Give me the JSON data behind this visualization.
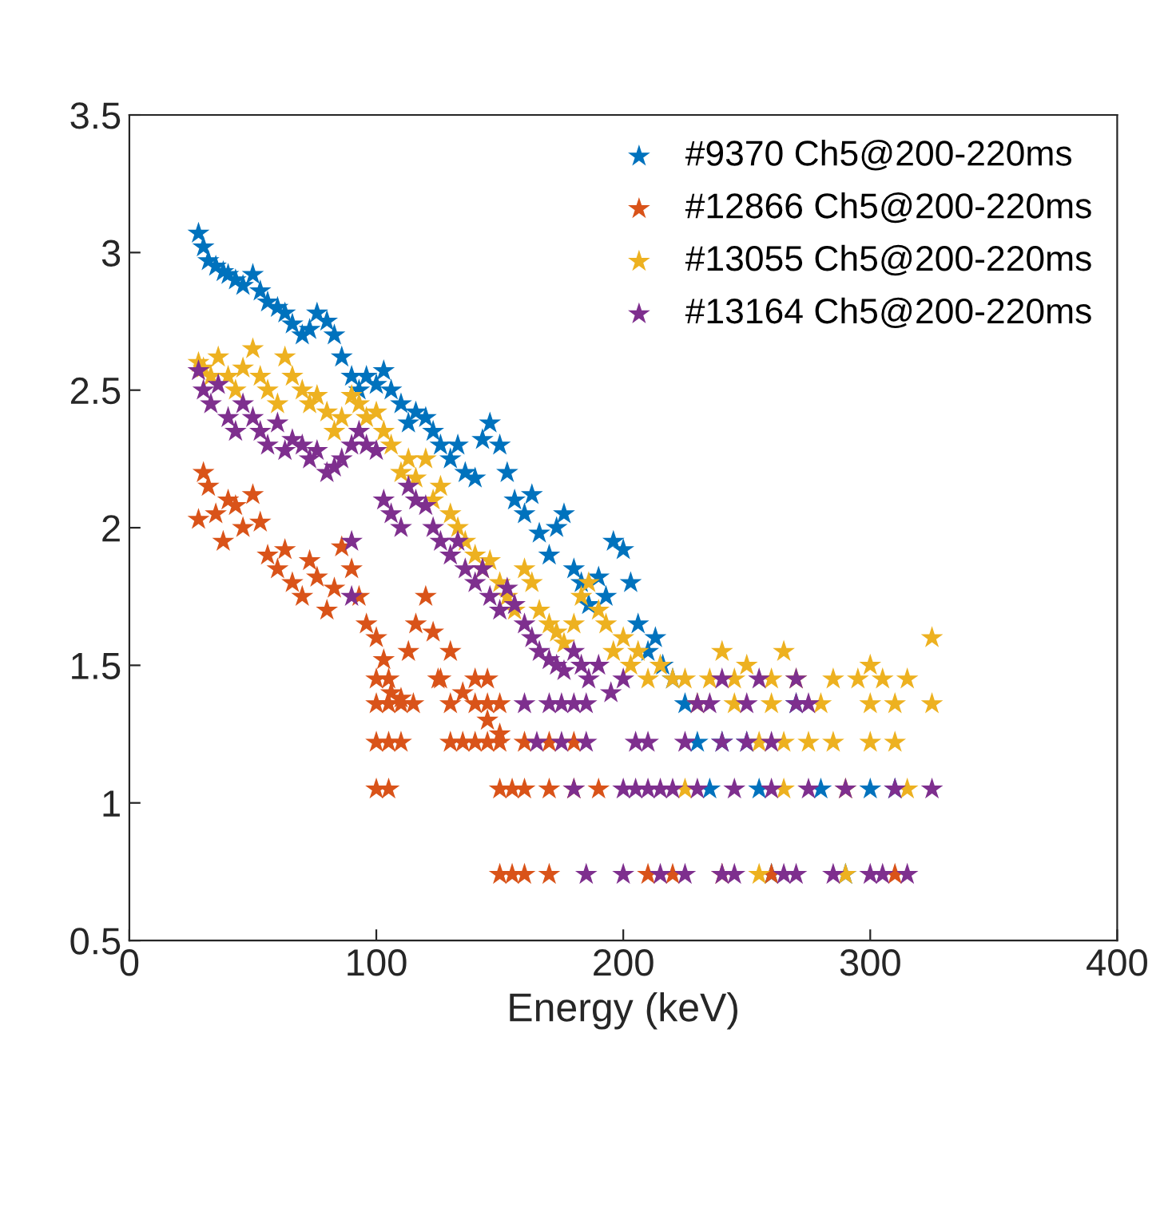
{
  "chart_data": {
    "type": "scatter",
    "xlabel": "Energy (keV)",
    "xlim": [
      0,
      400
    ],
    "xticks": [
      0,
      100,
      200,
      300,
      400
    ],
    "ylim": [
      0.5,
      3.5
    ],
    "yticks": [
      0.5,
      1,
      1.5,
      2,
      2.5,
      3,
      3.5
    ],
    "grid": false,
    "legend": "top right",
    "marker": "star",
    "series": [
      {
        "name": "#9370 Ch5@200-220ms",
        "color": "#0072bd",
        "x": [
          28,
          30,
          32,
          35,
          38,
          40,
          43,
          46,
          50,
          53,
          56,
          60,
          63,
          66,
          70,
          73,
          76,
          80,
          83,
          86,
          90,
          93,
          96,
          100,
          103,
          106,
          110,
          113,
          116,
          120,
          123,
          126,
          130,
          133,
          136,
          140,
          143,
          146,
          150,
          153,
          156,
          160,
          163,
          166,
          170,
          173,
          176,
          180,
          183,
          186,
          190,
          193,
          196,
          200,
          203,
          206,
          210,
          213,
          216,
          220,
          225,
          240,
          250,
          270,
          235,
          255,
          280,
          300,
          310,
          260,
          290,
          230
        ],
        "values": [
          3.07,
          3.02,
          2.97,
          2.95,
          2.93,
          2.92,
          2.9,
          2.88,
          2.92,
          2.86,
          2.82,
          2.8,
          2.78,
          2.74,
          2.7,
          2.72,
          2.78,
          2.75,
          2.7,
          2.62,
          2.55,
          2.5,
          2.55,
          2.52,
          2.57,
          2.5,
          2.45,
          2.38,
          2.42,
          2.4,
          2.35,
          2.3,
          2.25,
          2.3,
          2.2,
          2.18,
          2.32,
          2.38,
          2.3,
          2.2,
          2.1,
          2.05,
          2.12,
          1.98,
          1.9,
          2.0,
          2.05,
          1.85,
          1.8,
          1.72,
          1.82,
          1.75,
          1.95,
          1.92,
          1.8,
          1.65,
          1.55,
          1.6,
          1.5,
          1.45,
          1.36,
          1.22,
          1.22,
          1.36,
          1.05,
          1.05,
          1.05,
          1.05,
          1.05,
          0.74,
          0.74,
          1.22
        ]
      },
      {
        "name": "#12866 Ch5@200-220ms",
        "color": "#d95319",
        "x": [
          28,
          30,
          32,
          35,
          38,
          40,
          43,
          46,
          50,
          53,
          56,
          60,
          63,
          66,
          70,
          73,
          76,
          80,
          83,
          86,
          90,
          93,
          96,
          100,
          103,
          106,
          110,
          113,
          116,
          120,
          123,
          126,
          130,
          135,
          140,
          145,
          150,
          100,
          105,
          110,
          115,
          130,
          140,
          145,
          150,
          100,
          105,
          110,
          130,
          135,
          140,
          145,
          160,
          170,
          150,
          180,
          100,
          105,
          150,
          155,
          160,
          170,
          180,
          190,
          150,
          155,
          160,
          170,
          210,
          220,
          240,
          260,
          310,
          100,
          105,
          125,
          145
        ],
        "values": [
          2.03,
          2.2,
          2.15,
          2.05,
          1.95,
          2.1,
          2.08,
          2.0,
          2.12,
          2.02,
          1.9,
          1.85,
          1.92,
          1.8,
          1.75,
          1.88,
          1.82,
          1.7,
          1.78,
          1.93,
          1.85,
          1.75,
          1.65,
          1.6,
          1.52,
          1.4,
          1.38,
          1.55,
          1.65,
          1.75,
          1.62,
          1.45,
          1.55,
          1.4,
          1.45,
          1.3,
          1.25,
          1.36,
          1.36,
          1.36,
          1.36,
          1.36,
          1.36,
          1.36,
          1.36,
          1.22,
          1.22,
          1.22,
          1.22,
          1.22,
          1.22,
          1.22,
          1.22,
          1.22,
          1.22,
          1.22,
          1.05,
          1.05,
          1.05,
          1.05,
          1.05,
          1.05,
          1.05,
          1.05,
          0.74,
          0.74,
          0.74,
          0.74,
          0.74,
          0.74,
          0.74,
          0.74,
          0.74,
          1.45,
          1.45,
          1.45,
          1.45
        ]
      },
      {
        "name": "#13055 Ch5@200-220ms",
        "color": "#edb120",
        "x": [
          28,
          30,
          33,
          36,
          40,
          43,
          46,
          50,
          53,
          56,
          60,
          63,
          66,
          70,
          73,
          76,
          80,
          83,
          86,
          90,
          93,
          96,
          100,
          103,
          106,
          110,
          113,
          116,
          120,
          123,
          126,
          130,
          133,
          136,
          140,
          143,
          146,
          150,
          153,
          156,
          160,
          163,
          166,
          170,
          173,
          176,
          180,
          183,
          186,
          190,
          193,
          196,
          200,
          203,
          206,
          210,
          215,
          220,
          240,
          250,
          265,
          300,
          325,
          225,
          235,
          245,
          260,
          270,
          285,
          295,
          305,
          315,
          230,
          245,
          260,
          280,
          300,
          310,
          325,
          255,
          265,
          275,
          285,
          300,
          310,
          225,
          265,
          290,
          315,
          255,
          290
        ],
        "values": [
          2.6,
          2.58,
          2.55,
          2.62,
          2.55,
          2.5,
          2.58,
          2.65,
          2.55,
          2.5,
          2.45,
          2.62,
          2.55,
          2.5,
          2.45,
          2.48,
          2.42,
          2.35,
          2.4,
          2.48,
          2.45,
          2.4,
          2.42,
          2.35,
          2.3,
          2.2,
          2.25,
          2.18,
          2.25,
          2.1,
          2.15,
          2.05,
          2.0,
          1.95,
          1.9,
          1.85,
          1.88,
          1.8,
          1.75,
          1.7,
          1.85,
          1.8,
          1.7,
          1.65,
          1.62,
          1.58,
          1.65,
          1.75,
          1.8,
          1.7,
          1.65,
          1.55,
          1.6,
          1.5,
          1.55,
          1.45,
          1.5,
          1.45,
          1.55,
          1.5,
          1.55,
          1.5,
          1.6,
          1.45,
          1.45,
          1.45,
          1.45,
          1.45,
          1.45,
          1.45,
          1.45,
          1.45,
          1.36,
          1.36,
          1.36,
          1.36,
          1.36,
          1.36,
          1.36,
          1.22,
          1.22,
          1.22,
          1.22,
          1.22,
          1.22,
          1.05,
          1.05,
          1.05,
          1.05,
          0.74,
          0.74
        ]
      },
      {
        "name": "#13164 Ch5@200-220ms",
        "color": "#7e2f8e",
        "x": [
          28,
          30,
          33,
          36,
          40,
          43,
          46,
          50,
          53,
          56,
          60,
          63,
          66,
          70,
          73,
          76,
          80,
          83,
          86,
          90,
          93,
          96,
          100,
          103,
          106,
          110,
          113,
          116,
          120,
          123,
          126,
          130,
          133,
          136,
          140,
          143,
          146,
          150,
          153,
          156,
          160,
          163,
          166,
          170,
          173,
          176,
          180,
          183,
          186,
          190,
          195,
          200,
          90,
          90,
          240,
          255,
          270,
          160,
          170,
          175,
          180,
          185,
          230,
          235,
          250,
          270,
          275,
          165,
          175,
          185,
          205,
          210,
          225,
          240,
          250,
          260,
          180,
          200,
          205,
          210,
          215,
          220,
          230,
          245,
          260,
          275,
          290,
          310,
          325,
          185,
          200,
          215,
          225,
          240,
          245,
          265,
          270,
          285,
          300,
          305,
          315
        ],
        "values": [
          2.57,
          2.5,
          2.45,
          2.52,
          2.4,
          2.35,
          2.45,
          2.4,
          2.35,
          2.3,
          2.38,
          2.28,
          2.32,
          2.3,
          2.25,
          2.28,
          2.2,
          2.22,
          2.25,
          2.3,
          2.35,
          2.3,
          2.28,
          2.1,
          2.05,
          2.0,
          2.15,
          2.1,
          2.08,
          2.0,
          1.95,
          1.9,
          1.95,
          1.85,
          1.8,
          1.85,
          1.75,
          1.7,
          1.78,
          1.72,
          1.65,
          1.6,
          1.55,
          1.52,
          1.5,
          1.48,
          1.55,
          1.5,
          1.45,
          1.5,
          1.4,
          1.45,
          1.95,
          1.75,
          1.45,
          1.45,
          1.45,
          1.36,
          1.36,
          1.36,
          1.36,
          1.36,
          1.36,
          1.36,
          1.36,
          1.36,
          1.36,
          1.22,
          1.22,
          1.22,
          1.22,
          1.22,
          1.22,
          1.22,
          1.22,
          1.22,
          1.05,
          1.05,
          1.05,
          1.05,
          1.05,
          1.05,
          1.05,
          1.05,
          1.05,
          1.05,
          1.05,
          1.05,
          1.05,
          0.74,
          0.74,
          0.74,
          0.74,
          0.74,
          0.74,
          0.74,
          0.74,
          0.74,
          0.74,
          0.74,
          0.74
        ]
      }
    ]
  }
}
